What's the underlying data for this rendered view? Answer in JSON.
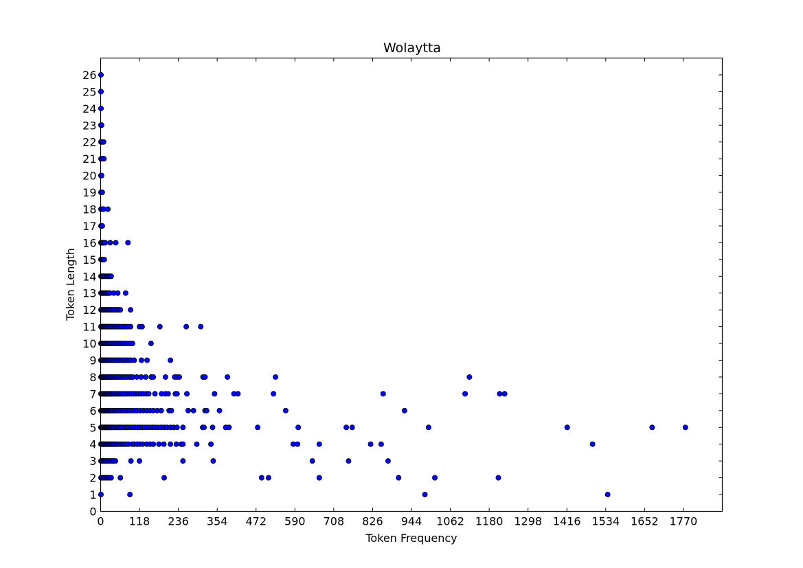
{
  "chart_data": {
    "type": "scatter",
    "title": "Wolaytta",
    "xlabel": "Token Frequency",
    "ylabel": "Token Length",
    "xlim": [
      0,
      1888
    ],
    "ylim": [
      0,
      27
    ],
    "xticks": [
      0,
      118,
      236,
      354,
      472,
      590,
      708,
      826,
      944,
      1062,
      1180,
      1298,
      1416,
      1534,
      1652,
      1770
    ],
    "yticks": [
      0,
      1,
      2,
      3,
      4,
      5,
      6,
      7,
      8,
      9,
      10,
      11,
      12,
      13,
      14,
      15,
      16,
      17,
      18,
      19,
      20,
      21,
      22,
      23,
      24,
      25,
      26
    ],
    "grid": false,
    "marker_color": "#0000ff",
    "edge_color": "#000000",
    "points": [
      [
        1,
        1
      ],
      [
        89,
        1
      ],
      [
        985,
        1
      ],
      [
        1540,
        1
      ],
      [
        1,
        2
      ],
      [
        4,
        2
      ],
      [
        7,
        2
      ],
      [
        10,
        2
      ],
      [
        14,
        2
      ],
      [
        18,
        2
      ],
      [
        22,
        2
      ],
      [
        27,
        2
      ],
      [
        32,
        2
      ],
      [
        60,
        2
      ],
      [
        193,
        2
      ],
      [
        489,
        2
      ],
      [
        510,
        2
      ],
      [
        664,
        2
      ],
      [
        905,
        2
      ],
      [
        1015,
        2
      ],
      [
        1208,
        2
      ],
      [
        1,
        3
      ],
      [
        3,
        3
      ],
      [
        5,
        3
      ],
      [
        7,
        3
      ],
      [
        9,
        3
      ],
      [
        12,
        3
      ],
      [
        15,
        3
      ],
      [
        18,
        3
      ],
      [
        22,
        3
      ],
      [
        26,
        3
      ],
      [
        30,
        3
      ],
      [
        35,
        3
      ],
      [
        40,
        3
      ],
      [
        45,
        3
      ],
      [
        92,
        3
      ],
      [
        118,
        3
      ],
      [
        250,
        3
      ],
      [
        342,
        3
      ],
      [
        643,
        3
      ],
      [
        753,
        3
      ],
      [
        873,
        3
      ],
      [
        1,
        4
      ],
      [
        3,
        4
      ],
      [
        5,
        4
      ],
      [
        7,
        4
      ],
      [
        9,
        4
      ],
      [
        11,
        4
      ],
      [
        13,
        4
      ],
      [
        15,
        4
      ],
      [
        18,
        4
      ],
      [
        21,
        4
      ],
      [
        24,
        4
      ],
      [
        27,
        4
      ],
      [
        30,
        4
      ],
      [
        33,
        4
      ],
      [
        36,
        4
      ],
      [
        40,
        4
      ],
      [
        44,
        4
      ],
      [
        48,
        4
      ],
      [
        52,
        4
      ],
      [
        57,
        4
      ],
      [
        62,
        4
      ],
      [
        67,
        4
      ],
      [
        72,
        4
      ],
      [
        78,
        4
      ],
      [
        84,
        4
      ],
      [
        95,
        4
      ],
      [
        102,
        4
      ],
      [
        110,
        4
      ],
      [
        118,
        4
      ],
      [
        127,
        4
      ],
      [
        140,
        4
      ],
      [
        150,
        4
      ],
      [
        160,
        4
      ],
      [
        177,
        4
      ],
      [
        192,
        4
      ],
      [
        212,
        4
      ],
      [
        230,
        4
      ],
      [
        245,
        4
      ],
      [
        250,
        4
      ],
      [
        292,
        4
      ],
      [
        335,
        4
      ],
      [
        585,
        4
      ],
      [
        598,
        4
      ],
      [
        664,
        4
      ],
      [
        820,
        4
      ],
      [
        852,
        4
      ],
      [
        1494,
        4
      ],
      [
        1,
        5
      ],
      [
        3,
        5
      ],
      [
        5,
        5
      ],
      [
        7,
        5
      ],
      [
        9,
        5
      ],
      [
        11,
        5
      ],
      [
        13,
        5
      ],
      [
        15,
        5
      ],
      [
        17,
        5
      ],
      [
        19,
        5
      ],
      [
        21,
        5
      ],
      [
        23,
        5
      ],
      [
        25,
        5
      ],
      [
        28,
        5
      ],
      [
        31,
        5
      ],
      [
        34,
        5
      ],
      [
        37,
        5
      ],
      [
        40,
        5
      ],
      [
        44,
        5
      ],
      [
        48,
        5
      ],
      [
        52,
        5
      ],
      [
        56,
        5
      ],
      [
        60,
        5
      ],
      [
        65,
        5
      ],
      [
        70,
        5
      ],
      [
        75,
        5
      ],
      [
        80,
        5
      ],
      [
        86,
        5
      ],
      [
        92,
        5
      ],
      [
        98,
        5
      ],
      [
        105,
        5
      ],
      [
        112,
        5
      ],
      [
        119,
        5
      ],
      [
        126,
        5
      ],
      [
        134,
        5
      ],
      [
        142,
        5
      ],
      [
        150,
        5
      ],
      [
        158,
        5
      ],
      [
        166,
        5
      ],
      [
        175,
        5
      ],
      [
        184,
        5
      ],
      [
        193,
        5
      ],
      [
        202,
        5
      ],
      [
        212,
        5
      ],
      [
        222,
        5
      ],
      [
        232,
        5
      ],
      [
        250,
        5
      ],
      [
        310,
        5
      ],
      [
        314,
        5
      ],
      [
        340,
        5
      ],
      [
        380,
        5
      ],
      [
        390,
        5
      ],
      [
        477,
        5
      ],
      [
        600,
        5
      ],
      [
        746,
        5
      ],
      [
        764,
        5
      ],
      [
        996,
        5
      ],
      [
        1417,
        5
      ],
      [
        1675,
        5
      ],
      [
        1776,
        5
      ],
      [
        1,
        6
      ],
      [
        3,
        6
      ],
      [
        5,
        6
      ],
      [
        7,
        6
      ],
      [
        9,
        6
      ],
      [
        11,
        6
      ],
      [
        13,
        6
      ],
      [
        15,
        6
      ],
      [
        17,
        6
      ],
      [
        19,
        6
      ],
      [
        22,
        6
      ],
      [
        25,
        6
      ],
      [
        28,
        6
      ],
      [
        31,
        6
      ],
      [
        34,
        6
      ],
      [
        38,
        6
      ],
      [
        42,
        6
      ],
      [
        46,
        6
      ],
      [
        50,
        6
      ],
      [
        55,
        6
      ],
      [
        60,
        6
      ],
      [
        65,
        6
      ],
      [
        70,
        6
      ],
      [
        76,
        6
      ],
      [
        82,
        6
      ],
      [
        88,
        6
      ],
      [
        95,
        6
      ],
      [
        103,
        6
      ],
      [
        111,
        6
      ],
      [
        120,
        6
      ],
      [
        130,
        6
      ],
      [
        140,
        6
      ],
      [
        150,
        6
      ],
      [
        160,
        6
      ],
      [
        172,
        6
      ],
      [
        184,
        6
      ],
      [
        208,
        6
      ],
      [
        215,
        6
      ],
      [
        266,
        6
      ],
      [
        282,
        6
      ],
      [
        317,
        6
      ],
      [
        322,
        6
      ],
      [
        361,
        6
      ],
      [
        562,
        6
      ],
      [
        923,
        6
      ],
      [
        1,
        7
      ],
      [
        3,
        7
      ],
      [
        5,
        7
      ],
      [
        7,
        7
      ],
      [
        9,
        7
      ],
      [
        11,
        7
      ],
      [
        13,
        7
      ],
      [
        15,
        7
      ],
      [
        17,
        7
      ],
      [
        19,
        7
      ],
      [
        21,
        7
      ],
      [
        24,
        7
      ],
      [
        27,
        7
      ],
      [
        30,
        7
      ],
      [
        33,
        7
      ],
      [
        36,
        7
      ],
      [
        40,
        7
      ],
      [
        44,
        7
      ],
      [
        48,
        7
      ],
      [
        52,
        7
      ],
      [
        56,
        7
      ],
      [
        61,
        7
      ],
      [
        66,
        7
      ],
      [
        71,
        7
      ],
      [
        76,
        7
      ],
      [
        82,
        7
      ],
      [
        88,
        7
      ],
      [
        94,
        7
      ],
      [
        100,
        7
      ],
      [
        107,
        7
      ],
      [
        114,
        7
      ],
      [
        122,
        7
      ],
      [
        130,
        7
      ],
      [
        138,
        7
      ],
      [
        146,
        7
      ],
      [
        165,
        7
      ],
      [
        185,
        7
      ],
      [
        197,
        7
      ],
      [
        205,
        7
      ],
      [
        227,
        7
      ],
      [
        232,
        7
      ],
      [
        262,
        7
      ],
      [
        346,
        7
      ],
      [
        405,
        7
      ],
      [
        417,
        7
      ],
      [
        525,
        7
      ],
      [
        858,
        7
      ],
      [
        1107,
        7
      ],
      [
        1212,
        7
      ],
      [
        1227,
        7
      ],
      [
        1,
        8
      ],
      [
        3,
        8
      ],
      [
        5,
        8
      ],
      [
        7,
        8
      ],
      [
        9,
        8
      ],
      [
        11,
        8
      ],
      [
        13,
        8
      ],
      [
        15,
        8
      ],
      [
        17,
        8
      ],
      [
        20,
        8
      ],
      [
        23,
        8
      ],
      [
        26,
        8
      ],
      [
        29,
        8
      ],
      [
        32,
        8
      ],
      [
        36,
        8
      ],
      [
        40,
        8
      ],
      [
        44,
        8
      ],
      [
        48,
        8
      ],
      [
        53,
        8
      ],
      [
        58,
        8
      ],
      [
        63,
        8
      ],
      [
        68,
        8
      ],
      [
        74,
        8
      ],
      [
        80,
        8
      ],
      [
        86,
        8
      ],
      [
        92,
        8
      ],
      [
        98,
        8
      ],
      [
        110,
        8
      ],
      [
        123,
        8
      ],
      [
        137,
        8
      ],
      [
        154,
        8
      ],
      [
        160,
        8
      ],
      [
        197,
        8
      ],
      [
        225,
        8
      ],
      [
        232,
        8
      ],
      [
        239,
        8
      ],
      [
        311,
        8
      ],
      [
        317,
        8
      ],
      [
        385,
        8
      ],
      [
        531,
        8
      ],
      [
        1120,
        8
      ],
      [
        1,
        9
      ],
      [
        3,
        9
      ],
      [
        5,
        9
      ],
      [
        7,
        9
      ],
      [
        9,
        9
      ],
      [
        11,
        9
      ],
      [
        13,
        9
      ],
      [
        15,
        9
      ],
      [
        18,
        9
      ],
      [
        21,
        9
      ],
      [
        24,
        9
      ],
      [
        27,
        9
      ],
      [
        30,
        9
      ],
      [
        34,
        9
      ],
      [
        38,
        9
      ],
      [
        42,
        9
      ],
      [
        47,
        9
      ],
      [
        52,
        9
      ],
      [
        57,
        9
      ],
      [
        62,
        9
      ],
      [
        68,
        9
      ],
      [
        74,
        9
      ],
      [
        80,
        9
      ],
      [
        86,
        9
      ],
      [
        92,
        9
      ],
      [
        102,
        9
      ],
      [
        124,
        9
      ],
      [
        141,
        9
      ],
      [
        212,
        9
      ],
      [
        1,
        10
      ],
      [
        3,
        10
      ],
      [
        5,
        10
      ],
      [
        7,
        10
      ],
      [
        9,
        10
      ],
      [
        11,
        10
      ],
      [
        13,
        10
      ],
      [
        16,
        10
      ],
      [
        19,
        10
      ],
      [
        22,
        10
      ],
      [
        25,
        10
      ],
      [
        28,
        10
      ],
      [
        32,
        10
      ],
      [
        36,
        10
      ],
      [
        40,
        10
      ],
      [
        44,
        10
      ],
      [
        48,
        10
      ],
      [
        53,
        10
      ],
      [
        58,
        10
      ],
      [
        63,
        10
      ],
      [
        68,
        10
      ],
      [
        76,
        10
      ],
      [
        83,
        10
      ],
      [
        90,
        10
      ],
      [
        97,
        10
      ],
      [
        153,
        10
      ],
      [
        1,
        11
      ],
      [
        3,
        11
      ],
      [
        5,
        11
      ],
      [
        7,
        11
      ],
      [
        9,
        11
      ],
      [
        11,
        11
      ],
      [
        13,
        11
      ],
      [
        15,
        11
      ],
      [
        18,
        11
      ],
      [
        21,
        11
      ],
      [
        24,
        11
      ],
      [
        27,
        11
      ],
      [
        30,
        11
      ],
      [
        34,
        11
      ],
      [
        38,
        11
      ],
      [
        42,
        11
      ],
      [
        46,
        11
      ],
      [
        50,
        11
      ],
      [
        55,
        11
      ],
      [
        60,
        11
      ],
      [
        65,
        11
      ],
      [
        71,
        11
      ],
      [
        77,
        11
      ],
      [
        83,
        11
      ],
      [
        91,
        11
      ],
      [
        118,
        11
      ],
      [
        126,
        11
      ],
      [
        180,
        11
      ],
      [
        260,
        11
      ],
      [
        304,
        11
      ],
      [
        1,
        12
      ],
      [
        3,
        12
      ],
      [
        5,
        12
      ],
      [
        7,
        12
      ],
      [
        9,
        12
      ],
      [
        11,
        12
      ],
      [
        13,
        12
      ],
      [
        16,
        12
      ],
      [
        19,
        12
      ],
      [
        22,
        12
      ],
      [
        25,
        12
      ],
      [
        28,
        12
      ],
      [
        32,
        12
      ],
      [
        36,
        12
      ],
      [
        40,
        12
      ],
      [
        45,
        12
      ],
      [
        50,
        12
      ],
      [
        55,
        12
      ],
      [
        60,
        12
      ],
      [
        91,
        12
      ],
      [
        1,
        13
      ],
      [
        3,
        13
      ],
      [
        5,
        13
      ],
      [
        7,
        13
      ],
      [
        9,
        13
      ],
      [
        11,
        13
      ],
      [
        13,
        13
      ],
      [
        16,
        13
      ],
      [
        19,
        13
      ],
      [
        22,
        13
      ],
      [
        25,
        13
      ],
      [
        28,
        13
      ],
      [
        40,
        13
      ],
      [
        52,
        13
      ],
      [
        76,
        13
      ],
      [
        1,
        14
      ],
      [
        3,
        14
      ],
      [
        5,
        14
      ],
      [
        7,
        14
      ],
      [
        9,
        14
      ],
      [
        11,
        14
      ],
      [
        14,
        14
      ],
      [
        17,
        14
      ],
      [
        20,
        14
      ],
      [
        23,
        14
      ],
      [
        26,
        14
      ],
      [
        29,
        14
      ],
      [
        32,
        14
      ],
      [
        1,
        15
      ],
      [
        3,
        15
      ],
      [
        5,
        15
      ],
      [
        7,
        15
      ],
      [
        9,
        15
      ],
      [
        11,
        15
      ],
      [
        1,
        16
      ],
      [
        3,
        16
      ],
      [
        5,
        16
      ],
      [
        7,
        16
      ],
      [
        9,
        16
      ],
      [
        11,
        16
      ],
      [
        14,
        16
      ],
      [
        29,
        16
      ],
      [
        46,
        16
      ],
      [
        83,
        16
      ],
      [
        1,
        17
      ],
      [
        3,
        17
      ],
      [
        5,
        17
      ],
      [
        1,
        18
      ],
      [
        3,
        18
      ],
      [
        6,
        18
      ],
      [
        9,
        18
      ],
      [
        22,
        18
      ],
      [
        1,
        19
      ],
      [
        3,
        19
      ],
      [
        5,
        19
      ],
      [
        1,
        20
      ],
      [
        3,
        20
      ],
      [
        1,
        21
      ],
      [
        3,
        21
      ],
      [
        6,
        21
      ],
      [
        10,
        21
      ],
      [
        1,
        22
      ],
      [
        3,
        22
      ],
      [
        6,
        22
      ],
      [
        9,
        22
      ],
      [
        1,
        23
      ],
      [
        3,
        23
      ],
      [
        1,
        24
      ],
      [
        1,
        25
      ],
      [
        1,
        26
      ]
    ]
  }
}
